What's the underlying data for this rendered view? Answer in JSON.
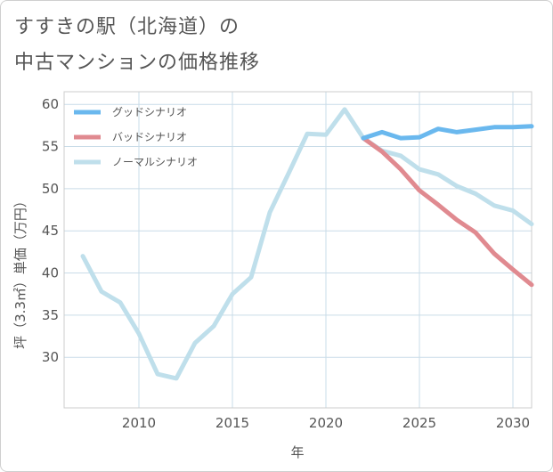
{
  "title_line1": "すすきの駅（北海道）の",
  "title_line2": "中古マンションの価格推移",
  "chart_data": {
    "type": "line",
    "title": "すすきの駅（北海道）の中古マンションの価格推移",
    "xlabel": "年",
    "ylabel": "坪（3.3㎡）単価（万円）",
    "xlim": [
      2006,
      2031
    ],
    "ylim": [
      24,
      61.5
    ],
    "xticks": [
      2010,
      2015,
      2020,
      2025,
      2030
    ],
    "yticks": [
      30,
      35,
      40,
      45,
      50,
      55,
      60
    ],
    "grid": true,
    "legend_position": "top-left",
    "series": [
      {
        "name": "グッドシナリオ",
        "color": "#6ab8ee",
        "points": [
          [
            2022,
            56.0
          ],
          [
            2023,
            56.7
          ],
          [
            2024,
            56.0
          ],
          [
            2025,
            56.1
          ],
          [
            2026,
            57.1
          ],
          [
            2027,
            56.7
          ],
          [
            2028,
            57.0
          ],
          [
            2029,
            57.3
          ],
          [
            2030,
            57.3
          ],
          [
            2031,
            57.4
          ]
        ]
      },
      {
        "name": "バッドシナリオ",
        "color": "#e08a90",
        "points": [
          [
            2022,
            56.0
          ],
          [
            2023,
            54.4
          ],
          [
            2024,
            52.3
          ],
          [
            2025,
            49.8
          ],
          [
            2026,
            48.1
          ],
          [
            2027,
            46.3
          ],
          [
            2028,
            44.8
          ],
          [
            2029,
            42.3
          ],
          [
            2030,
            40.4
          ],
          [
            2031,
            38.6
          ]
        ]
      },
      {
        "name": "ノーマルシナリオ",
        "color": "#bfdfeb",
        "points": [
          [
            2007,
            42.0
          ],
          [
            2008,
            37.8
          ],
          [
            2009,
            36.5
          ],
          [
            2010,
            32.8
          ],
          [
            2011,
            28.0
          ],
          [
            2012,
            27.5
          ],
          [
            2013,
            31.7
          ],
          [
            2014,
            33.7
          ],
          [
            2015,
            37.5
          ],
          [
            2016,
            39.5
          ],
          [
            2017,
            47.2
          ],
          [
            2018,
            51.8
          ],
          [
            2019,
            56.5
          ],
          [
            2020,
            56.4
          ],
          [
            2021,
            59.4
          ],
          [
            2022,
            56.0
          ],
          [
            2023,
            54.5
          ],
          [
            2024,
            53.9
          ],
          [
            2025,
            52.3
          ],
          [
            2026,
            51.7
          ],
          [
            2027,
            50.3
          ],
          [
            2028,
            49.4
          ],
          [
            2029,
            48.0
          ],
          [
            2030,
            47.4
          ],
          [
            2031,
            45.8
          ]
        ]
      }
    ]
  }
}
